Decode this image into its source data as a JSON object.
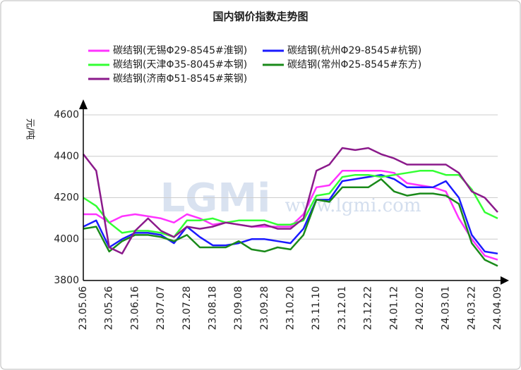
{
  "chart_data": {
    "type": "line",
    "title": "国内钢价指数走势图",
    "y_label": "元/吨",
    "watermark_logo": "LGMi",
    "watermark": "www.lgmi.com",
    "categories": [
      "23.05.06",
      null,
      "23.05.26",
      null,
      "23.06.16",
      null,
      "23.07.07",
      null,
      "23.07.28",
      null,
      "23.08.18",
      null,
      "23.09.08",
      null,
      "23.09.28",
      null,
      "23.10.20",
      null,
      "23.11.10",
      null,
      "23.12.01",
      null,
      "23.12.22",
      null,
      "24.01.12",
      null,
      "24.02.02",
      null,
      "24.03.01",
      null,
      "24.03.22",
      null,
      "24.04.09"
    ],
    "ylim": [
      3800,
      4600
    ],
    "yticks": [
      3800,
      4000,
      4200,
      4400,
      4600
    ],
    "grid": true,
    "series": [
      {
        "name": "碳结钢(无锡Φ29-8545#淮钢)",
        "color": "#ff33ff",
        "values": [
          4120,
          4120,
          4080,
          4110,
          4120,
          4110,
          4100,
          4080,
          4120,
          4100,
          4070,
          4080,
          4070,
          4060,
          4060,
          4060,
          4060,
          4120,
          4250,
          4260,
          4330,
          4330,
          4330,
          4330,
          4320,
          4270,
          4260,
          4250,
          4230,
          4100,
          4000,
          3920,
          3900
        ]
      },
      {
        "name": "碳结钢(杭州Φ29-8545#杭钢)",
        "color": "#1a1aff",
        "values": [
          4060,
          4090,
          3960,
          4000,
          4030,
          4030,
          4020,
          3980,
          4060,
          4010,
          3970,
          3970,
          3980,
          4000,
          4000,
          3990,
          3980,
          4050,
          4190,
          4190,
          4280,
          4290,
          4300,
          4310,
          4290,
          4250,
          4250,
          4250,
          4280,
          4200,
          4020,
          3940,
          3930
        ]
      },
      {
        "name": "碳结钢(天津Φ35-8045#本钢)",
        "color": "#33ff33",
        "values": [
          4200,
          4160,
          4080,
          4030,
          4040,
          4040,
          4030,
          4010,
          4090,
          4090,
          4100,
          4080,
          4090,
          4090,
          4090,
          4070,
          4070,
          4090,
          4210,
          4220,
          4300,
          4310,
          4310,
          4300,
          4310,
          4320,
          4330,
          4330,
          4310,
          4310,
          4240,
          4130,
          4100
        ]
      },
      {
        "name": "碳结钢(常州Φ25-8545#东方)",
        "color": "#1a8a1a",
        "values": [
          4050,
          4060,
          3940,
          3990,
          4020,
          4020,
          4010,
          3990,
          4020,
          3960,
          3960,
          3960,
          3990,
          3950,
          3940,
          3960,
          3950,
          4020,
          4190,
          4180,
          4250,
          4250,
          4250,
          4290,
          4230,
          4210,
          4220,
          4220,
          4210,
          4170,
          3980,
          3900,
          3870
        ]
      },
      {
        "name": "碳结钢(济南Φ51-8545#莱钢)",
        "color": "#8b1a8b",
        "values": [
          4410,
          4330,
          3960,
          3930,
          4040,
          4100,
          4040,
          4010,
          4060,
          4050,
          4060,
          4080,
          4070,
          4060,
          4070,
          4050,
          4050,
          4100,
          4330,
          4360,
          4440,
          4430,
          4440,
          4410,
          4390,
          4360,
          4360,
          4360,
          4360,
          4320,
          4230,
          4200,
          4130
        ]
      }
    ]
  }
}
